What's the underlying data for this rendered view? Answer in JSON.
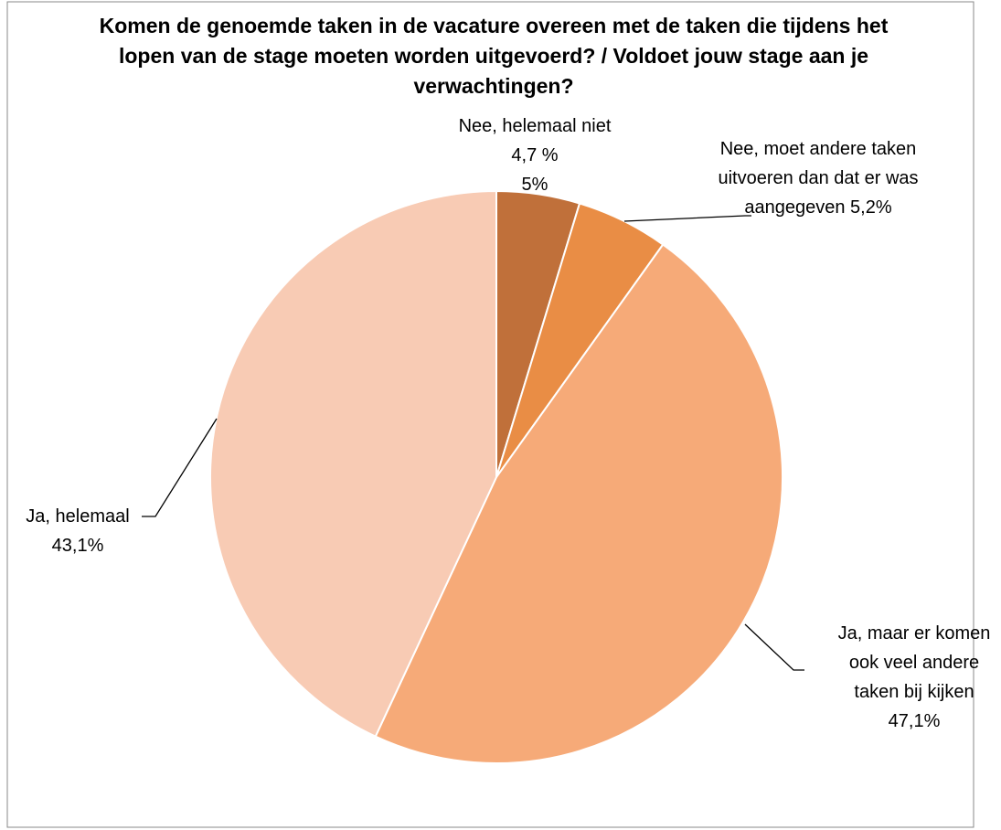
{
  "chart_data": {
    "type": "pie",
    "title": "Komen de genoemde taken in de vacature overeen met de taken die tijdens het lopen van de stage moeten worden uitgevoerd? / Voldoet jouw stage aan je verwachtingen?",
    "categories": [
      "Nee, helemaal niet 4,7 %",
      "Nee, moet andere taken uitvoeren dan dat er was aangegeven 5,2%",
      "Ja, maar er komen ook veel andere taken bij kijken 47,1%",
      "Ja, helemaal 43,1%"
    ],
    "values": [
      4.7,
      5.2,
      47.1,
      43.1
    ],
    "value_labels": [
      "5%",
      null,
      null,
      null
    ],
    "colors": [
      "#c0703a",
      "#e98d45",
      "#f6aa78",
      "#f8cbb4"
    ]
  }
}
